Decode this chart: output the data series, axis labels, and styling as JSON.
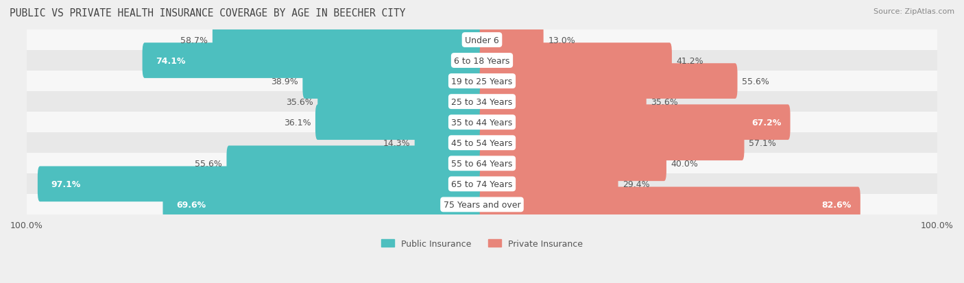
{
  "title": "PUBLIC VS PRIVATE HEALTH INSURANCE COVERAGE BY AGE IN BEECHER CITY",
  "source": "Source: ZipAtlas.com",
  "categories": [
    "Under 6",
    "6 to 18 Years",
    "19 to 25 Years",
    "25 to 34 Years",
    "35 to 44 Years",
    "45 to 54 Years",
    "55 to 64 Years",
    "65 to 74 Years",
    "75 Years and over"
  ],
  "public_values": [
    58.7,
    74.1,
    38.9,
    35.6,
    36.1,
    14.3,
    55.6,
    97.1,
    69.6
  ],
  "private_values": [
    13.0,
    41.2,
    55.6,
    35.6,
    67.2,
    57.1,
    40.0,
    29.4,
    82.6
  ],
  "public_color": "#4dbfbf",
  "private_color": "#e8857a",
  "bg_color": "#efefef",
  "row_bg_even": "#f7f7f7",
  "row_bg_odd": "#e8e8e8",
  "max_val": 100.0,
  "label_fontsize": 9.0,
  "title_fontsize": 10.5,
  "source_fontsize": 8.0,
  "bottom_labels": [
    "100.0%",
    "100.0%"
  ],
  "legend_labels": [
    "Public Insurance",
    "Private Insurance"
  ]
}
